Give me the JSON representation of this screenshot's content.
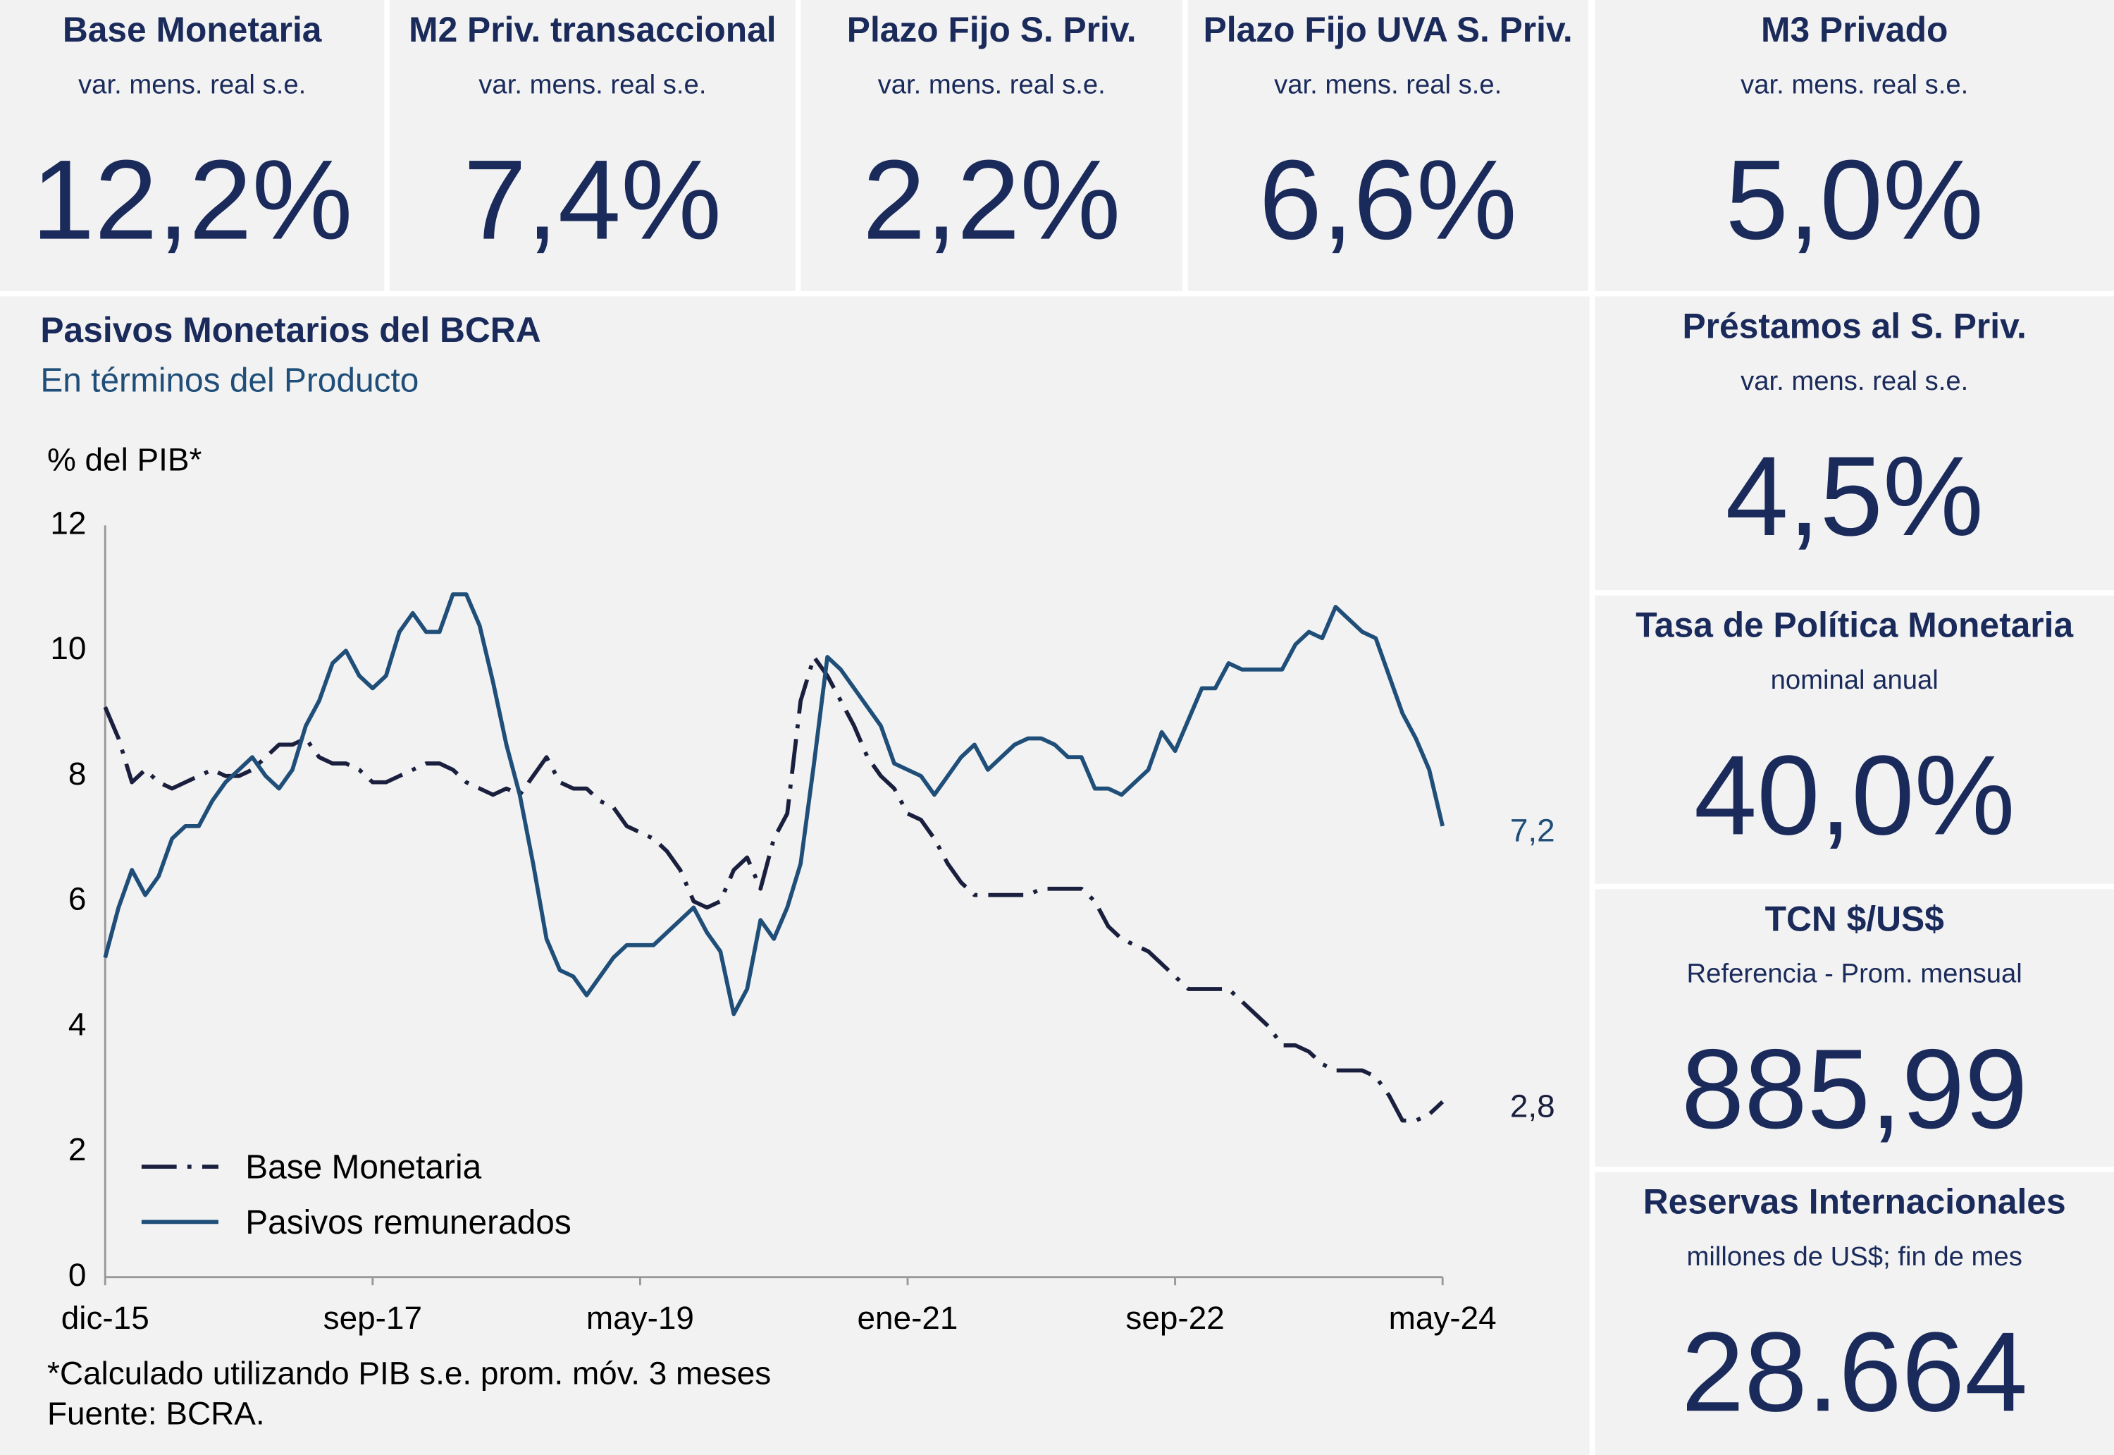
{
  "kpis": [
    {
      "title": "Base Monetaria",
      "subtitle": "var. mens. real s.e.",
      "value": "12,2%"
    },
    {
      "title": "M2 Priv. transaccional",
      "subtitle": "var. mens. real s.e.",
      "value": "7,4%"
    },
    {
      "title": "Plazo Fijo S. Priv.",
      "subtitle": "var. mens. real s.e.",
      "value": "2,2%"
    },
    {
      "title": "Plazo Fijo UVA S. Priv.",
      "subtitle": "var. mens. real s.e.",
      "value": "6,6%"
    },
    {
      "title": "M3 Privado",
      "subtitle": "var. mens. real s.e.",
      "value": "5,0%"
    },
    {
      "title": "Préstamos al S. Priv.",
      "subtitle": "var. mens. real s.e.",
      "value": "4,5%"
    },
    {
      "title": "Tasa de Política Monetaria",
      "subtitle": "nominal anual",
      "value": "40,0%"
    },
    {
      "title": "TCN $/US$",
      "subtitle": "Referencia - Prom. mensual",
      "value": "885,99"
    },
    {
      "title": "Reservas Internacionales",
      "subtitle": "millones de US$; fin de mes",
      "value": "28.664"
    }
  ],
  "chart_data": {
    "type": "line",
    "title": "Pasivos Monetarios del BCRA",
    "subtitle": "En términos del Producto",
    "y_label": "% del PIB*",
    "footnotes": [
      "*Calculado utilizando PIB s.e. prom. móv. 3 meses",
      "Fuente: BCRA."
    ],
    "categories": [
      "dic-15",
      null,
      null,
      null,
      null,
      null,
      null,
      null,
      null,
      null,
      null,
      null,
      null,
      null,
      null,
      null,
      null,
      null,
      null,
      null,
      "sep-17",
      null,
      null,
      null,
      null,
      null,
      null,
      null,
      null,
      null,
      null,
      null,
      null,
      null,
      null,
      null,
      null,
      null,
      null,
      null,
      "may-19",
      null,
      null,
      null,
      null,
      null,
      null,
      null,
      null,
      null,
      null,
      null,
      null,
      null,
      null,
      null,
      null,
      null,
      null,
      null,
      "ene-21",
      null,
      null,
      null,
      null,
      null,
      null,
      null,
      null,
      null,
      null,
      null,
      null,
      null,
      null,
      null,
      null,
      null,
      null,
      null,
      "sep-22",
      null,
      null,
      null,
      null,
      null,
      null,
      null,
      null,
      null,
      null,
      null,
      null,
      null,
      null,
      null,
      null,
      null,
      null,
      null,
      "may-24"
    ],
    "series": [
      {
        "name": "Base Monetaria",
        "color": "#1a1f3d",
        "dashed": true,
        "end_label": "2,8",
        "values": [
          9.1,
          8.6,
          7.9,
          8.1,
          7.9,
          7.8,
          7.9,
          8.0,
          8.1,
          8.0,
          8.0,
          8.1,
          8.3,
          8.5,
          8.5,
          8.6,
          8.3,
          8.2,
          8.2,
          8.1,
          7.9,
          7.9,
          8.0,
          8.1,
          8.2,
          8.2,
          8.1,
          7.9,
          7.8,
          7.7,
          7.8,
          7.7,
          8.0,
          8.3,
          7.9,
          7.8,
          7.8,
          7.6,
          7.5,
          7.2,
          7.1,
          7.0,
          6.8,
          6.5,
          6.0,
          5.9,
          6.0,
          6.5,
          6.7,
          6.2,
          7.0,
          7.4,
          9.2,
          9.9,
          9.6,
          9.2,
          8.8,
          8.3,
          8.0,
          7.8,
          7.4,
          7.3,
          7.0,
          6.6,
          6.3,
          6.1,
          6.1,
          6.1,
          6.1,
          6.1,
          6.2,
          6.2,
          6.2,
          6.2,
          6.0,
          5.6,
          5.4,
          5.3,
          5.2,
          5.0,
          4.8,
          4.6,
          4.6,
          4.6,
          4.6,
          4.4,
          4.2,
          4.0,
          3.7,
          3.7,
          3.6,
          3.4,
          3.3,
          3.3,
          3.3,
          3.2,
          2.9,
          2.5,
          2.5,
          2.6,
          2.8
        ]
      },
      {
        "name": "Pasivos remunerados",
        "color": "#1f4e79",
        "dashed": false,
        "end_label": "7,2",
        "values": [
          5.1,
          5.9,
          6.5,
          6.1,
          6.4,
          7.0,
          7.2,
          7.2,
          7.6,
          7.9,
          8.1,
          8.3,
          8.0,
          7.8,
          8.1,
          8.8,
          9.2,
          9.8,
          10.0,
          9.6,
          9.4,
          9.6,
          10.3,
          10.6,
          10.3,
          10.3,
          10.9,
          10.9,
          10.4,
          9.5,
          8.5,
          7.7,
          6.6,
          5.4,
          4.9,
          4.8,
          4.5,
          4.8,
          5.1,
          5.3,
          5.3,
          5.3,
          5.5,
          5.7,
          5.9,
          5.5,
          5.2,
          4.2,
          4.6,
          5.7,
          5.4,
          5.9,
          6.6,
          8.2,
          9.9,
          9.7,
          9.4,
          9.1,
          8.8,
          8.2,
          8.1,
          8.0,
          7.7,
          8.0,
          8.3,
          8.5,
          8.1,
          8.3,
          8.5,
          8.6,
          8.6,
          8.5,
          8.3,
          8.3,
          7.8,
          7.8,
          7.7,
          7.9,
          8.1,
          8.7,
          8.4,
          8.9,
          9.4,
          9.4,
          9.8,
          9.7,
          9.7,
          9.7,
          9.7,
          10.1,
          10.3,
          10.2,
          10.7,
          10.5,
          10.3,
          10.2,
          9.6,
          9.0,
          8.6,
          8.1,
          7.2
        ]
      }
    ],
    "ylim": [
      0,
      12
    ],
    "yticks": [
      0,
      2,
      4,
      6,
      8,
      10,
      12
    ],
    "grid": false,
    "legend": "lower-left"
  }
}
